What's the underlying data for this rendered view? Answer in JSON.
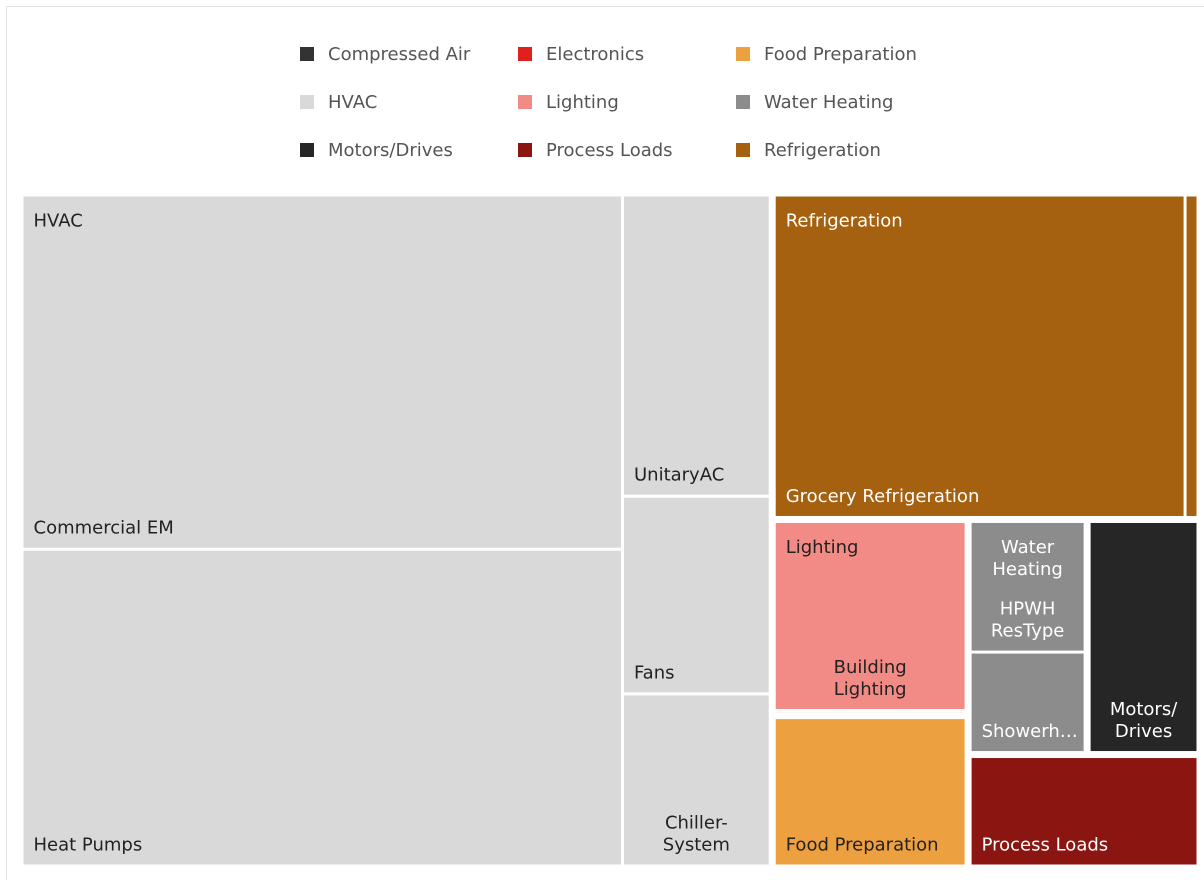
{
  "chart_data": {
    "type": "treemap",
    "legend": [
      {
        "name": "Compressed Air",
        "color": "#333333"
      },
      {
        "name": "Electronics",
        "color": "#e0201b"
      },
      {
        "name": "Food Preparation",
        "color": "#eda040"
      },
      {
        "name": "HVAC",
        "color": "#d9d9d9"
      },
      {
        "name": "Lighting",
        "color": "#f28b85"
      },
      {
        "name": "Water Heating",
        "color": "#8c8c8c"
      },
      {
        "name": "Motors/Drives",
        "color": "#262626"
      },
      {
        "name": "Process Loads",
        "color": "#8b1510"
      },
      {
        "name": "Refrigeration",
        "color": "#a5610f"
      }
    ],
    "groups": [
      {
        "name": "HVAC",
        "color": "#d9d9d9",
        "children": [
          {
            "name": "Commercial EM",
            "value": 208681
          },
          {
            "name": "Heat Pumps",
            "value": 186599
          },
          {
            "name": "UnitaryAC",
            "value": 43659
          },
          {
            "name": "Fans",
            "value": 28644
          },
          {
            "name": "Chiller-System",
            "value": 24948
          }
        ]
      },
      {
        "name": "Refrigeration",
        "color": "#a5610f",
        "children": [
          {
            "name": "Grocery Refrigeration",
            "value": 131334
          },
          {
            "name": null,
            "value": 4134
          }
        ]
      },
      {
        "name": "Lighting",
        "color": "#f28b85",
        "children": [
          {
            "name": "Building Lighting",
            "value": 36670
          },
          {
            "name": null,
            "value": 600
          }
        ]
      },
      {
        "name": "Food Preparation",
        "color": "#eda040",
        "children": [
          {
            "name": "Food Preparation",
            "value": 28950
          }
        ]
      },
      {
        "name": "Water Heating",
        "color": "#8c8c8c",
        "children": [
          {
            "name": "HPWH ResType",
            "value": 15340
          },
          {
            "name": "Showerh…",
            "value": 11800
          }
        ]
      },
      {
        "name": "Motors/Drives",
        "color": "#262626",
        "children": [
          {
            "name": "Motors/Drives",
            "value": 25740
          }
        ]
      },
      {
        "name": "Process Loads",
        "color": "#8b1510",
        "children": [
          {
            "name": "Process Loads",
            "value": 25520
          }
        ]
      }
    ]
  }
}
